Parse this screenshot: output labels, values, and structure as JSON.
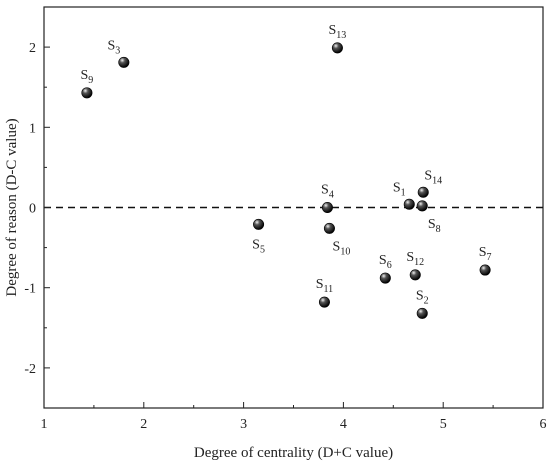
{
  "chart_data": {
    "type": "scatter",
    "title": "",
    "xlabel": "Degree of centrality (D+C value)",
    "ylabel": "Degree of reason (D-C value)",
    "xlim": [
      1,
      6
    ],
    "ylim": [
      -2.5,
      2.5
    ],
    "xticks": [
      1,
      2,
      3,
      4,
      5,
      6
    ],
    "yticks": [
      -2,
      -1,
      0,
      1,
      2
    ],
    "grid": false,
    "reference_line": {
      "y": 0,
      "style": "dashed"
    },
    "points": [
      {
        "label": "S",
        "sub": "1",
        "x": 4.66,
        "y": 0.04,
        "label_pos": "above-left"
      },
      {
        "label": "S",
        "sub": "2",
        "x": 4.79,
        "y": -1.32,
        "label_pos": "above"
      },
      {
        "label": "S",
        "sub": "3",
        "x": 1.8,
        "y": 1.81,
        "label_pos": "above-left"
      },
      {
        "label": "S",
        "sub": "4",
        "x": 3.84,
        "y": 0.0,
        "label_pos": "above"
      },
      {
        "label": "S",
        "sub": "5",
        "x": 3.15,
        "y": -0.21,
        "label_pos": "below"
      },
      {
        "label": "S",
        "sub": "6",
        "x": 4.42,
        "y": -0.88,
        "label_pos": "above"
      },
      {
        "label": "S",
        "sub": "7",
        "x": 5.42,
        "y": -0.78,
        "label_pos": "above"
      },
      {
        "label": "S",
        "sub": "8",
        "x": 4.79,
        "y": 0.02,
        "label_pos": "below-right"
      },
      {
        "label": "S",
        "sub": "9",
        "x": 1.43,
        "y": 1.43,
        "label_pos": "above"
      },
      {
        "label": "S",
        "sub": "10",
        "x": 3.86,
        "y": -0.26,
        "label_pos": "below-right"
      },
      {
        "label": "S",
        "sub": "11",
        "x": 3.81,
        "y": -1.18,
        "label_pos": "above"
      },
      {
        "label": "S",
        "sub": "12",
        "x": 4.72,
        "y": -0.84,
        "label_pos": "above"
      },
      {
        "label": "S",
        "sub": "13",
        "x": 3.94,
        "y": 1.99,
        "label_pos": "above"
      },
      {
        "label": "S",
        "sub": "14",
        "x": 4.8,
        "y": 0.19,
        "label_pos": "above-right"
      }
    ]
  }
}
